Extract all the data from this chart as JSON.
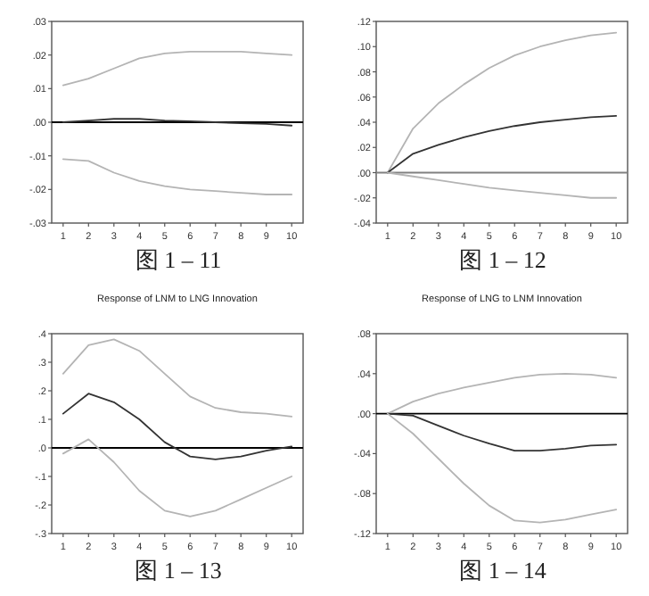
{
  "chart_data": [
    {
      "type": "line",
      "categories": [
        "1",
        "2",
        "3",
        "4",
        "5",
        "6",
        "7",
        "8",
        "9",
        "10"
      ],
      "ylim": [
        -0.03,
        0.03
      ],
      "yticks": [
        {
          "value": -0.03,
          "label": "-.03"
        },
        {
          "value": -0.02,
          "label": "-.02"
        },
        {
          "value": -0.01,
          "label": "-.01"
        },
        {
          "value": 0,
          "label": ".00"
        },
        {
          "value": 0.01,
          "label": ".01"
        },
        {
          "value": 0.02,
          "label": ".02"
        },
        {
          "value": 0.03,
          "label": ".03"
        }
      ],
      "series": [
        {
          "color": "#b4b4b4",
          "values": [
            0.011,
            0.013,
            0.016,
            0.019,
            0.0205,
            0.021,
            0.021,
            0.021,
            0.0205,
            0.02
          ]
        },
        {
          "color": "#333333",
          "values": [
            0.0,
            0.0005,
            0.001,
            0.001,
            0.0005,
            0.0003,
            0.0,
            -0.0003,
            -0.0005,
            -0.001
          ]
        },
        {
          "color": "#b4b4b4",
          "values": [
            -0.011,
            -0.0115,
            -0.015,
            -0.0175,
            -0.019,
            -0.02,
            -0.0205,
            -0.021,
            -0.0215,
            -0.0215
          ]
        }
      ],
      "ref_lines": [
        {
          "axis": "y",
          "value": 0,
          "color": "#000000"
        }
      ],
      "annotations": [
        "图 1 – 11"
      ]
    },
    {
      "type": "line",
      "categories": [
        "1",
        "2",
        "3",
        "4",
        "5",
        "6",
        "7",
        "8",
        "9",
        "10"
      ],
      "ylim": [
        -0.04,
        0.12
      ],
      "yticks": [
        {
          "value": -0.04,
          "label": "-.04"
        },
        {
          "value": -0.02,
          "label": "-.02"
        },
        {
          "value": 0,
          "label": ".00"
        },
        {
          "value": 0.02,
          "label": ".02"
        },
        {
          "value": 0.04,
          "label": ".04"
        },
        {
          "value": 0.06,
          "label": ".06"
        },
        {
          "value": 0.08,
          "label": ".08"
        },
        {
          "value": 0.1,
          "label": ".10"
        },
        {
          "value": 0.12,
          "label": ".12"
        }
      ],
      "series": [
        {
          "color": "#b4b4b4",
          "values": [
            0,
            0.035,
            0.055,
            0.07,
            0.083,
            0.093,
            0.1,
            0.105,
            0.109,
            0.111
          ]
        },
        {
          "color": "#333333",
          "values": [
            0,
            0.015,
            0.022,
            0.028,
            0.033,
            0.037,
            0.04,
            0.042,
            0.044,
            0.045
          ]
        },
        {
          "color": "#b4b4b4",
          "values": [
            0,
            -0.003,
            -0.006,
            -0.009,
            -0.012,
            -0.014,
            -0.016,
            -0.018,
            -0.02,
            -0.02
          ]
        }
      ],
      "ref_lines": [
        {
          "axis": "y",
          "value": 0,
          "color": "#808080"
        }
      ],
      "annotations": [
        "图 1 – 12"
      ]
    },
    {
      "type": "line",
      "title": "Response of LNM to LNG Innovation",
      "categories": [
        "1",
        "2",
        "3",
        "4",
        "5",
        "6",
        "7",
        "8",
        "9",
        "10"
      ],
      "ylim": [
        -0.3,
        0.4
      ],
      "yticks": [
        {
          "value": -0.3,
          "label": "-.3"
        },
        {
          "value": -0.2,
          "label": "-.2"
        },
        {
          "value": -0.1,
          "label": "-.1"
        },
        {
          "value": 0,
          "label": ".0"
        },
        {
          "value": 0.1,
          "label": ".1"
        },
        {
          "value": 0.2,
          "label": ".2"
        },
        {
          "value": 0.3,
          "label": ".3"
        },
        {
          "value": 0.4,
          "label": ".4"
        }
      ],
      "series": [
        {
          "color": "#b4b4b4",
          "values": [
            0.26,
            0.36,
            0.38,
            0.34,
            0.26,
            0.18,
            0.14,
            0.125,
            0.12,
            0.11
          ]
        },
        {
          "color": "#333333",
          "values": [
            0.12,
            0.19,
            0.16,
            0.1,
            0.02,
            -0.03,
            -0.04,
            -0.03,
            -0.01,
            0.005
          ]
        },
        {
          "color": "#b4b4b4",
          "values": [
            -0.02,
            0.03,
            -0.05,
            -0.15,
            -0.22,
            -0.24,
            -0.22,
            -0.18,
            -0.14,
            -0.1
          ]
        }
      ],
      "ref_lines": [
        {
          "axis": "y",
          "value": 0,
          "color": "#000000"
        }
      ],
      "annotations": [
        "图 1 – 13"
      ]
    },
    {
      "type": "line",
      "title": "Response of LNG to LNM Innovation",
      "categories": [
        "1",
        "2",
        "3",
        "4",
        "5",
        "6",
        "7",
        "8",
        "9",
        "10"
      ],
      "ylim": [
        -0.12,
        0.08
      ],
      "yticks": [
        {
          "value": -0.12,
          "label": "-.12"
        },
        {
          "value": -0.08,
          "label": "-.08"
        },
        {
          "value": -0.04,
          "label": "-.04"
        },
        {
          "value": 0,
          "label": ".00"
        },
        {
          "value": 0.04,
          "label": ".04"
        },
        {
          "value": 0.08,
          "label": ".08"
        }
      ],
      "series": [
        {
          "color": "#b4b4b4",
          "values": [
            0,
            0.012,
            0.02,
            0.026,
            0.031,
            0.036,
            0.039,
            0.04,
            0.039,
            0.036
          ]
        },
        {
          "color": "#333333",
          "values": [
            0,
            -0.002,
            -0.012,
            -0.022,
            -0.03,
            -0.037,
            -0.037,
            -0.035,
            -0.032,
            -0.031
          ]
        },
        {
          "color": "#b4b4b4",
          "values": [
            0,
            -0.02,
            -0.045,
            -0.07,
            -0.092,
            -0.107,
            -0.109,
            -0.106,
            -0.101,
            -0.096
          ]
        }
      ],
      "ref_lines": [
        {
          "axis": "y",
          "value": 0,
          "color": "#000000"
        }
      ],
      "annotations": [
        "图 1 – 14"
      ]
    }
  ]
}
